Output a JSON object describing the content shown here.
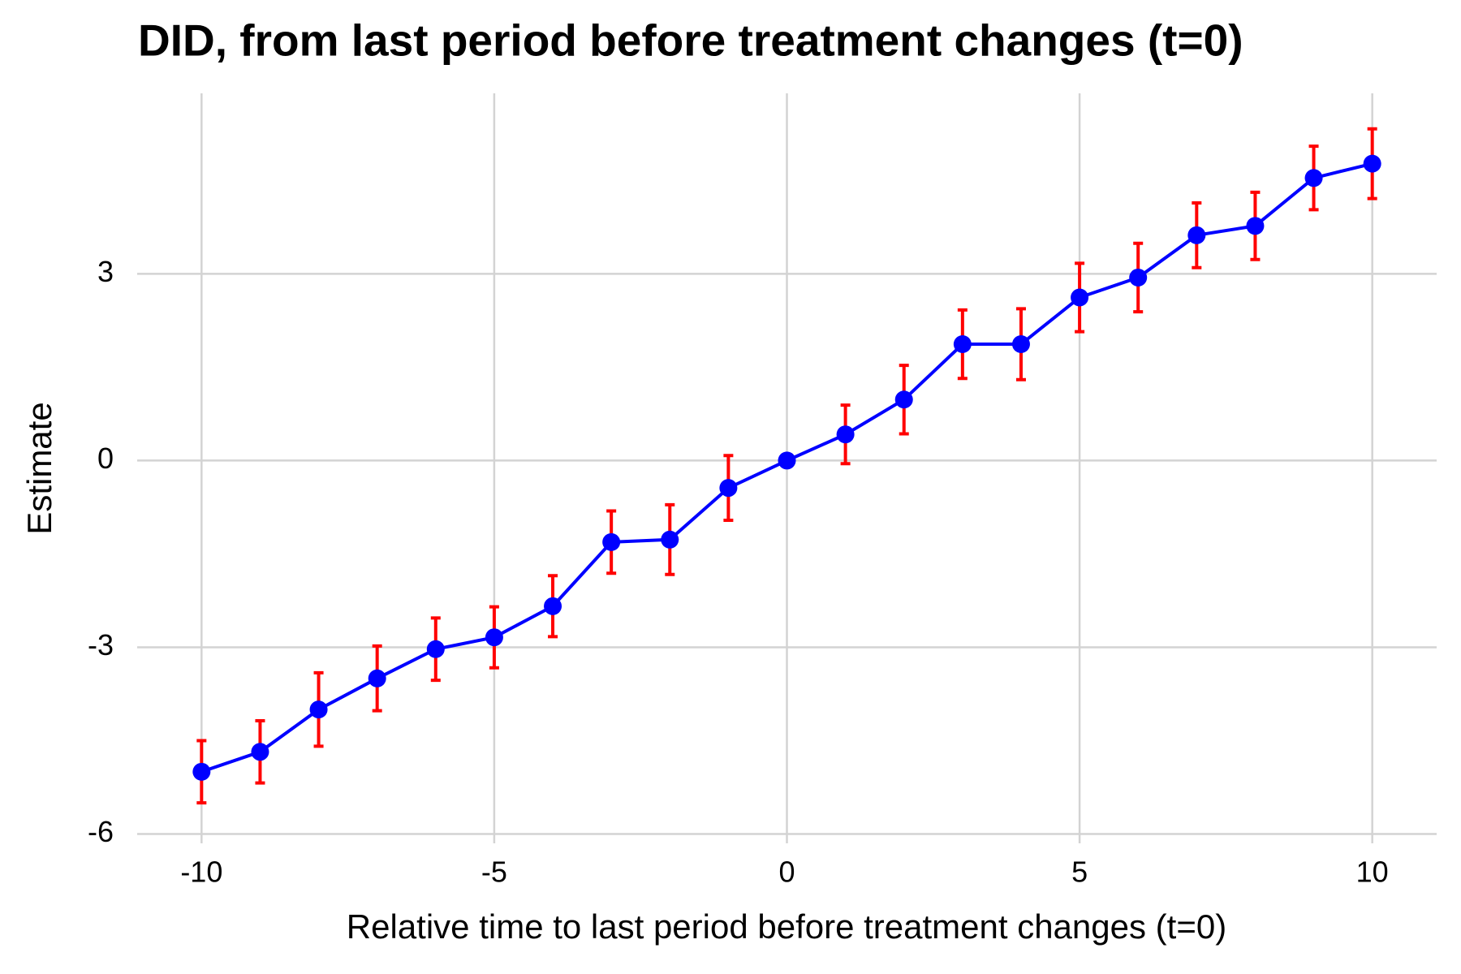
{
  "chart_data": {
    "type": "line",
    "title": "DID, from last period before treatment changes (t=0)",
    "xlabel": "Relative time to last period before treatment changes (t=0)",
    "ylabel": "Estimate",
    "x": [
      -10,
      -9,
      -8,
      -7,
      -6,
      -5,
      -4,
      -3,
      -2,
      -1,
      0,
      1,
      2,
      3,
      4,
      5,
      6,
      7,
      8,
      9,
      10
    ],
    "series": [
      {
        "color": "#0000ff",
        "error_color": "#ff0000",
        "values": [
          -5.0,
          -4.68,
          -4.0,
          -3.5,
          -3.03,
          -2.84,
          -2.34,
          -1.31,
          -1.27,
          -0.44,
          0,
          0.42,
          0.98,
          1.87,
          1.87,
          2.62,
          2.94,
          3.62,
          3.77,
          4.54,
          4.77
        ],
        "errors": [
          0.5,
          0.5,
          0.59,
          0.52,
          0.5,
          0.49,
          0.49,
          0.5,
          0.56,
          0.52,
          null,
          0.47,
          0.55,
          0.55,
          0.57,
          0.55,
          0.55,
          0.52,
          0.54,
          0.51,
          0.56
        ]
      }
    ],
    "xlim": [
      -11.1,
      11.1
    ],
    "xticks": [
      -10,
      -5,
      0,
      5,
      10
    ],
    "ylim": [
      -6.15,
      5.9
    ],
    "yticks": [
      -6,
      -3,
      0,
      3
    ],
    "grid": true
  }
}
